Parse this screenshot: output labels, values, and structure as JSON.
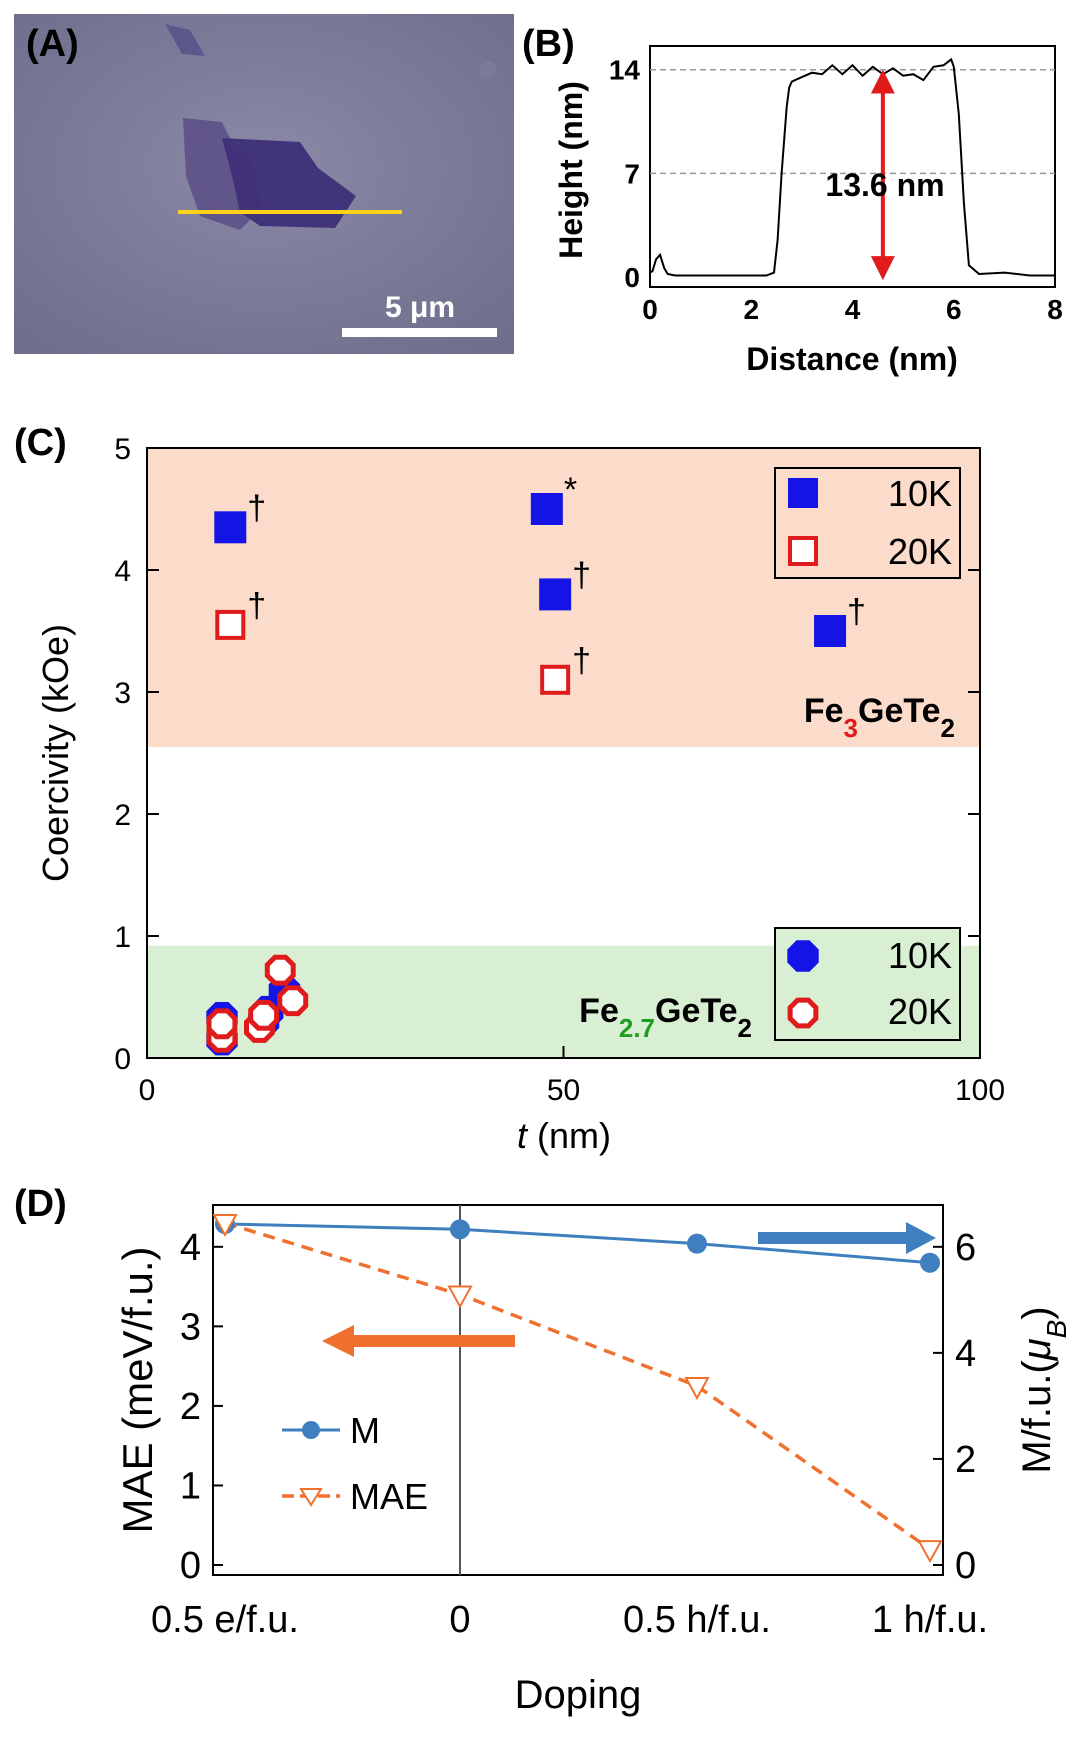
{
  "colors": {
    "blue": "#1414e6",
    "red": "#e01b1b",
    "green_text": "#1e9e1e",
    "region_fe3": "#fbdccb",
    "region_fe27": "#d9efd3",
    "line_M": "#3f7fbf",
    "line_MAE": "#f07030",
    "scan_line": "#ffd21a"
  },
  "panel_labels": {
    "a": "(A)",
    "b": "(B)",
    "c": "(C)",
    "d": "(D)"
  },
  "panel_a": {
    "scale_bar_label": "5 μm"
  },
  "chart_data": [
    {
      "id": "B",
      "type": "line",
      "xlabel": "Distance (nm)",
      "ylabel": "Height (nm)",
      "xlim": [
        0,
        8
      ],
      "ylim": [
        0,
        14
      ],
      "xticks": [
        0,
        2,
        4,
        6,
        8
      ],
      "yticks": [
        0,
        7,
        14
      ],
      "gridlines_y": [
        7,
        14
      ],
      "annotation": "13.6 nm",
      "x": [
        0,
        0.05,
        0.12,
        0.2,
        0.28,
        0.35,
        0.5,
        1.0,
        1.5,
        2.0,
        2.3,
        2.45,
        2.52,
        2.6,
        2.7,
        2.75,
        2.8,
        3.0,
        3.2,
        3.4,
        3.6,
        3.8,
        4.0,
        4.2,
        4.4,
        4.6,
        4.8,
        5.0,
        5.2,
        5.4,
        5.6,
        5.8,
        5.95,
        6.0,
        6.1,
        6.2,
        6.3,
        6.5,
        7.0,
        7.5,
        8.0
      ],
      "y": [
        0.3,
        0.4,
        1.2,
        1.5,
        0.6,
        0.2,
        0.1,
        0.1,
        0.1,
        0.1,
        0.1,
        0.3,
        2.5,
        7,
        11.5,
        12.8,
        13.2,
        13.5,
        13.8,
        13.7,
        14.3,
        13.7,
        14.3,
        13.6,
        14.2,
        13.7,
        14.1,
        13.6,
        13.7,
        13.3,
        14.2,
        14.3,
        14.7,
        14.2,
        11,
        5,
        0.8,
        0.2,
        0.3,
        0.1,
        0.1
      ]
    },
    {
      "id": "C",
      "type": "scatter",
      "xlabel_italic": "t",
      "xlabel_unit": " (nm)",
      "ylabel": "Coercivity (kOe)",
      "xlim": [
        0,
        100
      ],
      "ylim": [
        0,
        5
      ],
      "xticks": [
        0,
        50,
        100
      ],
      "yticks": [
        0,
        1,
        2,
        3,
        4,
        5
      ],
      "regions": [
        {
          "name": "Fe3GeTe2",
          "y_from": 2.55,
          "y_to": 5,
          "label_main": "Fe",
          "label_sub1": "3",
          "label_mid": "GeTe",
          "label_sub2": "2"
        },
        {
          "name": "Fe2.7GeTe2",
          "y_from": 0,
          "y_to": 0.92,
          "label_main": "Fe",
          "label_sub1": "2.7",
          "label_mid": "GeTe",
          "label_sub2": "2"
        }
      ],
      "legend_top": [
        {
          "label": "10K",
          "marker": "filled-square"
        },
        {
          "label": "20K",
          "marker": "open-square"
        }
      ],
      "legend_bottom": [
        {
          "label": "10K",
          "marker": "filled-octagon"
        },
        {
          "label": "20K",
          "marker": "open-octagon"
        }
      ],
      "series": [
        {
          "marker": "filled-square",
          "x": [
            10,
            48,
            49,
            82
          ],
          "y": [
            4.35,
            4.5,
            3.8,
            3.5
          ],
          "notes": [
            "†",
            "*",
            "†",
            "†"
          ]
        },
        {
          "marker": "open-square",
          "x": [
            10,
            49
          ],
          "y": [
            3.55,
            3.1
          ],
          "notes": [
            "†",
            "†"
          ]
        },
        {
          "marker": "filled-octagon",
          "x": [
            9,
            9,
            14,
            14.5,
            16.5,
            17
          ],
          "y": [
            0.15,
            0.33,
            0.3,
            0.38,
            0.55,
            0.5
          ],
          "notes": []
        },
        {
          "marker": "open-octagon",
          "x": [
            9,
            9,
            13.5,
            14,
            16,
            17.5
          ],
          "y": [
            0.17,
            0.28,
            0.25,
            0.35,
            0.72,
            0.47
          ],
          "notes": []
        }
      ]
    },
    {
      "id": "D",
      "type": "line",
      "xlabel": "Doping",
      "ylabel_left": "MAE (meV/f.u.)",
      "ylabel_right_prefix": "M/f.u.(",
      "ylabel_right_mu": "μ",
      "ylabel_right_sub": "B",
      "ylabel_right_suffix": ")",
      "categories": [
        "0.5 e/f.u.",
        "0",
        "0.5 h/f.u.",
        "1 h/f.u."
      ],
      "ylim_left": [
        0,
        4.4
      ],
      "ylim_right": [
        0,
        6.6
      ],
      "yticks_left": [
        0,
        1,
        2,
        3,
        4
      ],
      "yticks_right": [
        0,
        2,
        4,
        6
      ],
      "series": [
        {
          "name": "M",
          "axis": "right",
          "values": [
            6.43,
            6.33,
            6.06,
            5.7
          ]
        },
        {
          "name": "MAE",
          "axis": "left",
          "values": [
            4.3,
            3.4,
            2.25,
            0.2
          ]
        }
      ]
    }
  ]
}
